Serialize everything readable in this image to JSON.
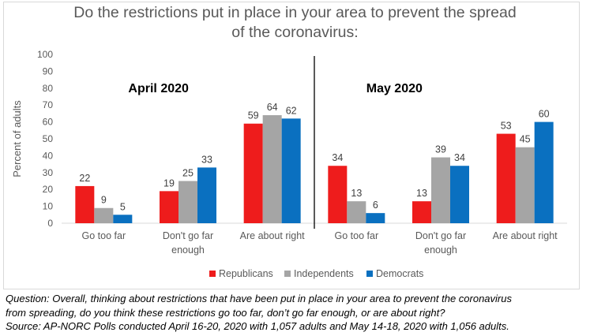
{
  "title_line1": "Do the restrictions put in place in your area to prevent the spread",
  "title_line2": "of the coronavirus:",
  "caption": {
    "question_line1": "Question: Overall, thinking about restrictions that have been put in place in your area to prevent the coronavirus",
    "question_line2": "from spreading, do you think these restrictions go too far, don’t go far enough, or are about right?",
    "source": "Source: AP-NORC Polls conducted April 16-20, 2020 with 1,057 adults and May 14-18, 2020 with 1,056 adults."
  },
  "chart_data": {
    "type": "bar",
    "title": "Do the restrictions put in place in your area to prevent the spread of the coronavirus:",
    "ylabel": "Percent of adults",
    "ylim": [
      0,
      100
    ],
    "yticks": [
      0,
      10,
      20,
      30,
      40,
      50,
      60,
      70,
      80,
      90,
      100
    ],
    "grid": false,
    "legend_position": "bottom",
    "panels": [
      "April 2020",
      "May 2020"
    ],
    "categories": [
      [
        "Go too far"
      ],
      [
        "Don't go far",
        "enough"
      ],
      [
        "Are about right"
      ],
      [
        "Go too far"
      ],
      [
        "Don't go far",
        "enough"
      ],
      [
        "Are about right"
      ]
    ],
    "series": [
      {
        "name": "Republicans",
        "color": "#ee1c1c",
        "values": [
          22,
          19,
          59,
          34,
          13,
          53
        ]
      },
      {
        "name": "Independents",
        "color": "#a5a5a5",
        "values": [
          9,
          25,
          64,
          13,
          39,
          45
        ]
      },
      {
        "name": "Democrats",
        "color": "#0a70c0",
        "values": [
          5,
          33,
          62,
          6,
          34,
          60
        ]
      }
    ]
  }
}
